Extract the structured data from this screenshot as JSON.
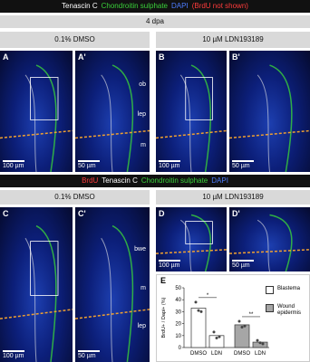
{
  "header_top": [
    {
      "text": "Tenascin C",
      "color": "#ffffff"
    },
    {
      "text": "Chondroitin sulphate",
      "color": "#3ad13a"
    },
    {
      "text": "DAPI",
      "color": "#4d7dff"
    },
    {
      "text": "(BrdU not shown)",
      "color": "#ff3b3b"
    }
  ],
  "timepoint": "4 dpa",
  "top_conditions": [
    "0.1% DMSO",
    "10 µM LDN193189"
  ],
  "top_panels": [
    {
      "label": "A",
      "scale": "100 µm",
      "annotations": []
    },
    {
      "label": "A'",
      "scale": "50 µm",
      "annotations": [
        "ob",
        "lep",
        "m"
      ]
    },
    {
      "label": "B",
      "scale": "100 µm",
      "annotations": []
    },
    {
      "label": "B'",
      "scale": "50 µm",
      "annotations": []
    }
  ],
  "header_bottom": [
    {
      "text": "BrdU",
      "color": "#ff3b3b"
    },
    {
      "text": "Tenascin C",
      "color": "#ffffff"
    },
    {
      "text": "Chondroitin sulphate",
      "color": "#3ad13a"
    },
    {
      "text": "DAPI",
      "color": "#4d7dff"
    }
  ],
  "bottom_conditions": [
    "0.1% DMSO",
    "10 µM LDN193189"
  ],
  "bottom_panels": [
    {
      "label": "C",
      "scale": "100 µm",
      "annotations": []
    },
    {
      "label": "C'",
      "scale": "50 µm",
      "annotations": [
        "bwe",
        "m",
        "lep"
      ]
    },
    {
      "label": "D",
      "scale": "100 µm",
      "annotations": []
    },
    {
      "label": "D'",
      "scale": "50 µm",
      "annotations": []
    }
  ],
  "chart_data": {
    "type": "bar",
    "panel": "E",
    "ylabel": "BrdU+ / Dapi+ (%)",
    "categories": [
      "DMSO",
      "LDN",
      "DMSO",
      "LDN"
    ],
    "series": [
      {
        "name": "Blastema",
        "color": "#ffffff",
        "values": [
          33,
          10,
          null,
          null
        ],
        "points": [
          [
            38,
            31,
            30
          ],
          [
            13,
            8,
            9
          ],
          null,
          null
        ]
      },
      {
        "name": "Wound epidermis",
        "color": "#a6a6a6",
        "values": [
          null,
          null,
          19,
          4.5
        ],
        "points": [
          null,
          null,
          [
            22,
            17,
            18
          ],
          [
            6,
            4,
            3
          ]
        ]
      }
    ],
    "significance": [
      "*",
      "**"
    ],
    "ylim": [
      0,
      50
    ],
    "yticks": [
      0,
      10,
      20,
      30,
      40,
      50
    ]
  }
}
